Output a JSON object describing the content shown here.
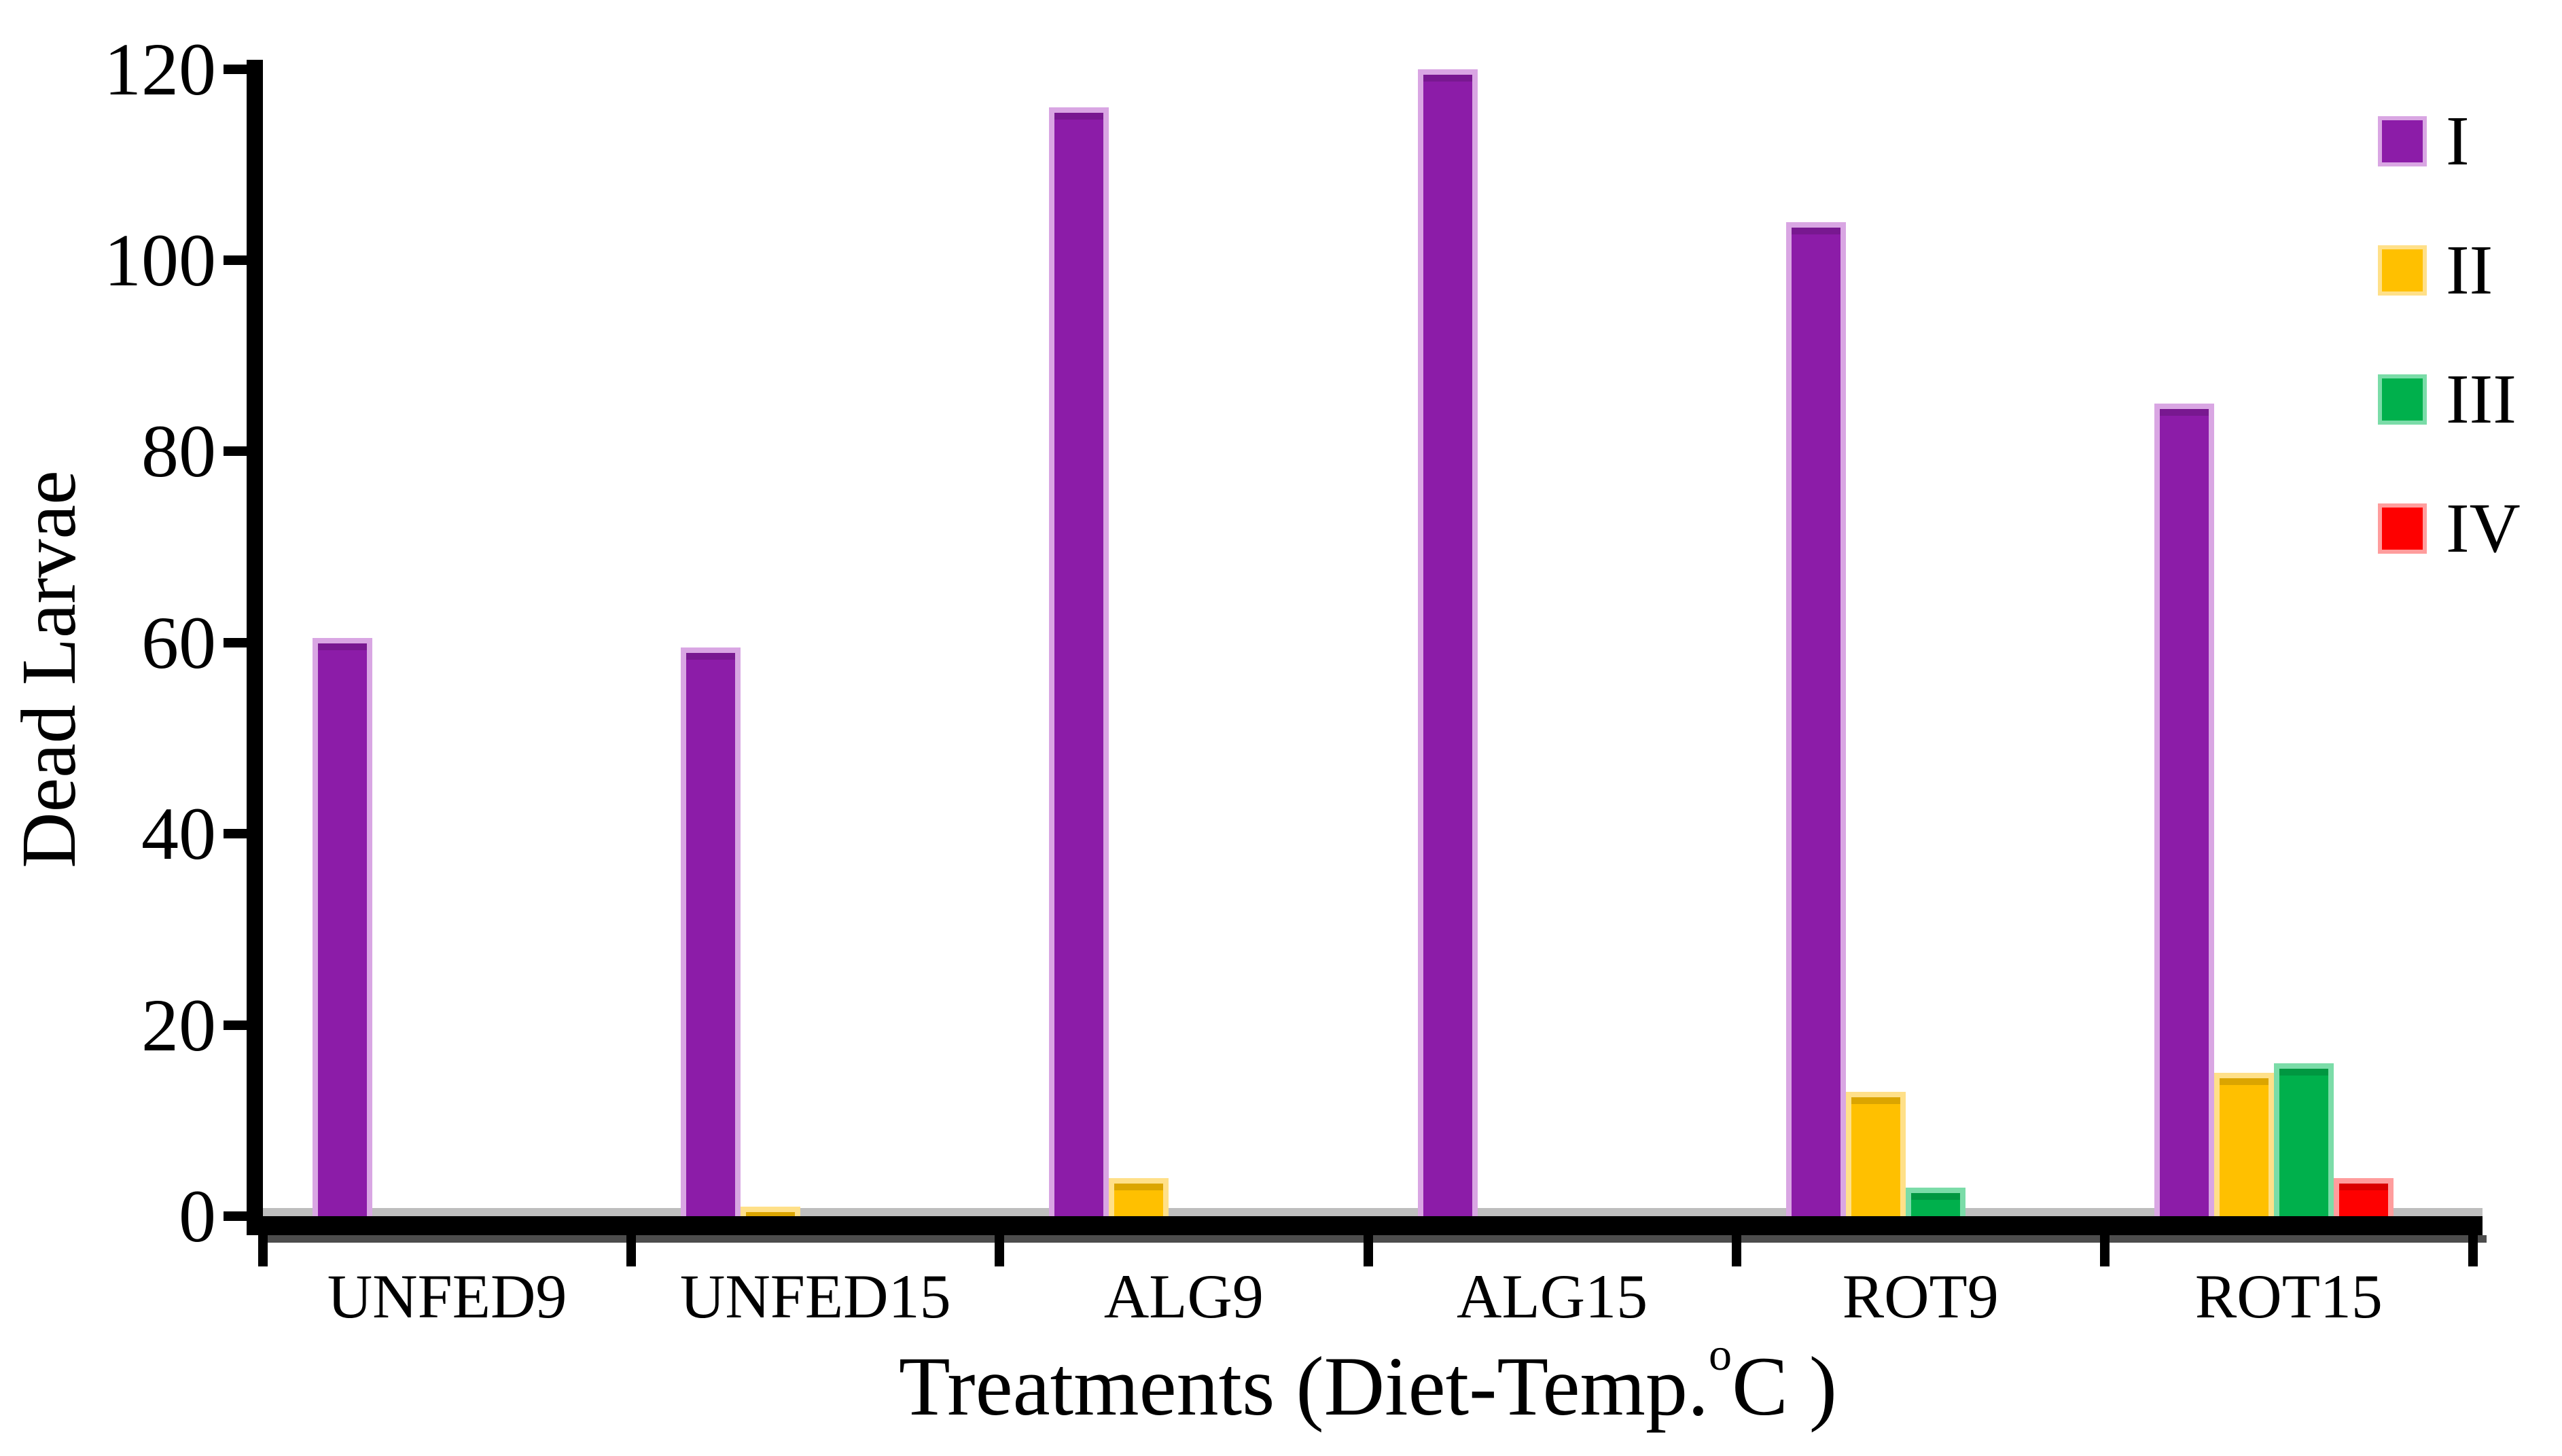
{
  "chart_data": {
    "type": "bar",
    "title": "",
    "ylabel": "Dead Larvae",
    "xlabel_prefix": "Treatments (Diet-Temp.",
    "xlabel_sup": "o",
    "xlabel_suffix": "C )",
    "categories": [
      "UNFED9",
      "UNFED15",
      "ALG9",
      "ALG15",
      "ROT9",
      "ROT15"
    ],
    "series": [
      {
        "name": "I",
        "color": "#8C1CA8",
        "edge": "#D9A6E3",
        "values": [
          60.5,
          59.5,
          116,
          120,
          104,
          85
        ]
      },
      {
        "name": "II",
        "color": "#FFC000",
        "edge": "#FFE089",
        "values": [
          0,
          1,
          4,
          0,
          13,
          15
        ]
      },
      {
        "name": "III",
        "color": "#00B04C",
        "edge": "#7BDCA8",
        "values": [
          0,
          0,
          0,
          0,
          3,
          16
        ]
      },
      {
        "name": "IV",
        "color": "#FE0000",
        "edge": "#FF9D9D",
        "values": [
          0,
          0,
          0,
          0,
          0,
          4
        ]
      }
    ],
    "yticks": [
      0,
      20,
      40,
      60,
      80,
      100,
      120
    ],
    "ylim": [
      0,
      120
    ],
    "grid": false,
    "legend_position": "top-right",
    "axis_color": "#000000",
    "baseline_shadow_color": "#BEBEBE"
  }
}
